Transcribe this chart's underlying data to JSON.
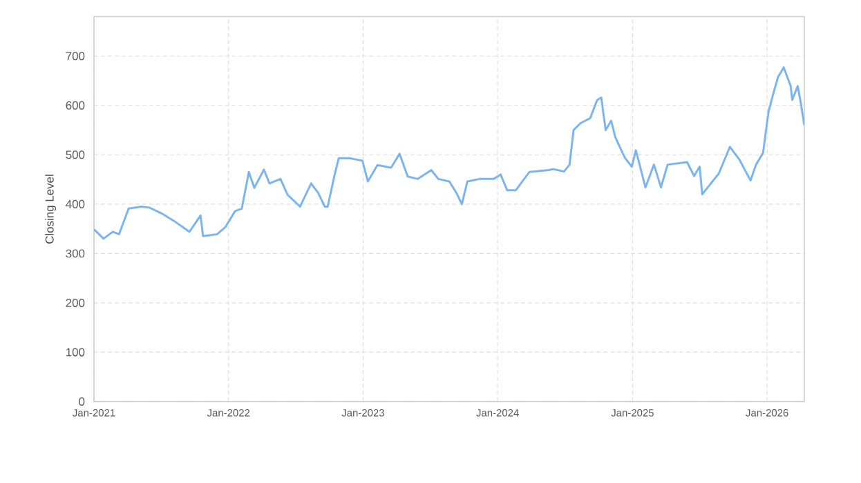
{
  "chart_data": {
    "type": "line",
    "ylabel": "Closing Level",
    "grid": true,
    "marker": "none",
    "line_style": "solid",
    "xlim": [
      "2021-01-01",
      "2026-04-12"
    ],
    "ylim": [
      0,
      780
    ],
    "xticks": [
      {
        "value": "2021-01-01",
        "label": "Jan-2021"
      },
      {
        "value": "2022-01-01",
        "label": "Jan-2022"
      },
      {
        "value": "2023-01-01",
        "label": "Jan-2023"
      },
      {
        "value": "2024-01-01",
        "label": "Jan-2024"
      },
      {
        "value": "2025-01-01",
        "label": "Jan-2025"
      },
      {
        "value": "2026-01-01",
        "label": "Jan-2026"
      }
    ],
    "yticks": [
      0,
      100,
      200,
      300,
      400,
      500,
      600,
      700
    ],
    "x": [
      "2021-01-01",
      "2021-01-27",
      "2021-02-21",
      "2021-03-10",
      "2021-04-05",
      "2021-05-09",
      "2021-05-31",
      "2021-07-04",
      "2021-08-10",
      "2021-09-17",
      "2021-10-17",
      "2021-10-24",
      "2021-12-01",
      "2021-12-23",
      "2022-01-19",
      "2022-02-06",
      "2022-02-25",
      "2022-03-12",
      "2022-04-07",
      "2022-04-22",
      "2022-05-22",
      "2022-06-10",
      "2022-07-14",
      "2022-08-13",
      "2022-09-01",
      "2022-09-19",
      "2022-09-27",
      "2022-10-16",
      "2022-10-27",
      "2022-11-26",
      "2022-12-30",
      "2023-01-14",
      "2023-02-09",
      "2023-03-18",
      "2023-04-10",
      "2023-05-02",
      "2023-05-29",
      "2023-07-05",
      "2023-07-24",
      "2023-08-23",
      "2023-09-11",
      "2023-09-26",
      "2023-10-11",
      "2023-11-13",
      "2023-12-21",
      "2024-01-09",
      "2024-01-27",
      "2024-02-19",
      "2024-03-27",
      "2024-05-19",
      "2024-05-30",
      "2024-06-29",
      "2024-07-14",
      "2024-07-25",
      "2024-08-13",
      "2024-09-08",
      "2024-09-27",
      "2024-10-08",
      "2024-10-20",
      "2024-11-04",
      "2024-11-15",
      "2024-12-11",
      "2024-12-30",
      "2025-01-10",
      "2025-02-05",
      "2025-02-28",
      "2025-03-19",
      "2025-04-06",
      "2025-05-29",
      "2025-06-17",
      "2025-07-02",
      "2025-07-09",
      "2025-08-23",
      "2025-09-22",
      "2025-10-18",
      "2025-11-17",
      "2025-12-02",
      "2025-12-21",
      "2026-01-05",
      "2026-01-20",
      "2026-01-31",
      "2026-02-15",
      "2026-03-06",
      "2026-03-10",
      "2026-03-25",
      "2026-04-01",
      "2026-04-12"
    ],
    "series": [
      {
        "color": "#7cb5ec",
        "values": [
          349,
          330,
          344,
          339,
          391,
          395,
          393,
          381,
          364,
          344,
          377,
          335,
          339,
          353,
          386,
          391,
          465,
          433,
          470,
          442,
          451,
          419,
          395,
          442,
          423,
          395,
          395,
          460,
          493,
          493,
          488,
          446,
          479,
          474,
          502,
          456,
          451,
          469,
          451,
          446,
          423,
          400,
          446,
          451,
          451,
          460,
          428,
          428,
          465,
          469,
          471,
          466,
          480,
          550,
          564,
          574,
          611,
          616,
          550,
          569,
          536,
          494,
          476,
          509,
          434,
          480,
          434,
          480,
          485,
          457,
          476,
          420,
          462,
          516,
          490,
          448,
          480,
          504,
          588,
          630,
          658,
          677,
          639,
          611,
          639,
          611,
          560
        ]
      }
    ]
  }
}
